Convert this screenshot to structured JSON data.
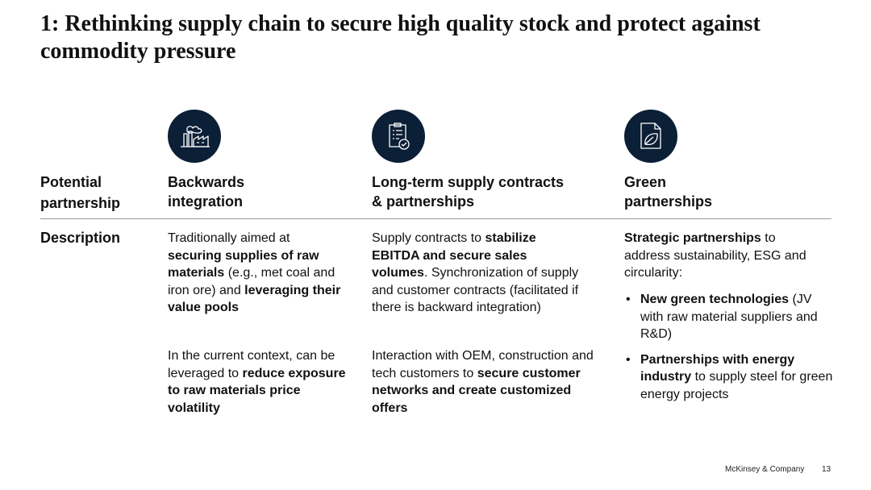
{
  "title": "1: Rethinking supply chain to secure high quality stock and protect against commodity pressure",
  "header_label": [
    "Potential",
    "partnership"
  ],
  "row_label": "Description",
  "columns": [
    {
      "icon": "factory-icon",
      "heading": [
        "Backwards",
        "integration"
      ],
      "p1": [
        {
          "t": "Traditionally aimed at ",
          "b": false
        },
        {
          "t": "securing supplies of raw materials",
          "b": true
        },
        {
          "t": " (e.g., met coal and iron ore) and ",
          "b": false
        },
        {
          "t": "leveraging their value pools",
          "b": true
        }
      ],
      "p2": [
        {
          "t": "In the current context, can be leveraged to ",
          "b": false
        },
        {
          "t": "reduce exposure to raw materials price volatility",
          "b": true
        }
      ]
    },
    {
      "icon": "clipboard-check-icon",
      "heading": [
        "Long-term supply contracts",
        "& partnerships"
      ],
      "p1": [
        {
          "t": "Supply contracts to ",
          "b": false
        },
        {
          "t": "stabilize EBITDA and secure sales volumes",
          "b": true
        },
        {
          "t": ". Synchronization of supply and customer contracts (facilitated if there is backward integration)",
          "b": false
        }
      ],
      "p2": [
        {
          "t": "Interaction with OEM, construction and tech customers to ",
          "b": false
        },
        {
          "t": "secure customer networks and create customized offers",
          "b": true
        }
      ]
    },
    {
      "icon": "leaf-document-icon",
      "heading": [
        "Green",
        "partnerships"
      ],
      "p1": [
        {
          "t": "Strategic partnerships",
          "b": true
        },
        {
          "t": " to address sustainability, ESG and circularity:",
          "b": false
        }
      ],
      "bullets": [
        [
          {
            "t": "New green technologies",
            "b": true
          },
          {
            "t": " (JV with raw material suppliers and R&D)",
            "b": false
          }
        ],
        [
          {
            "t": "Partnerships with energy industry",
            "b": true
          },
          {
            "t": " to supply steel for green energy projects",
            "b": false
          }
        ]
      ]
    }
  ],
  "footer": {
    "brand": "McKinsey & Company",
    "page": "13"
  },
  "colors": {
    "icon_bg": "#0b1f36",
    "rule": "#9a9a9a"
  }
}
